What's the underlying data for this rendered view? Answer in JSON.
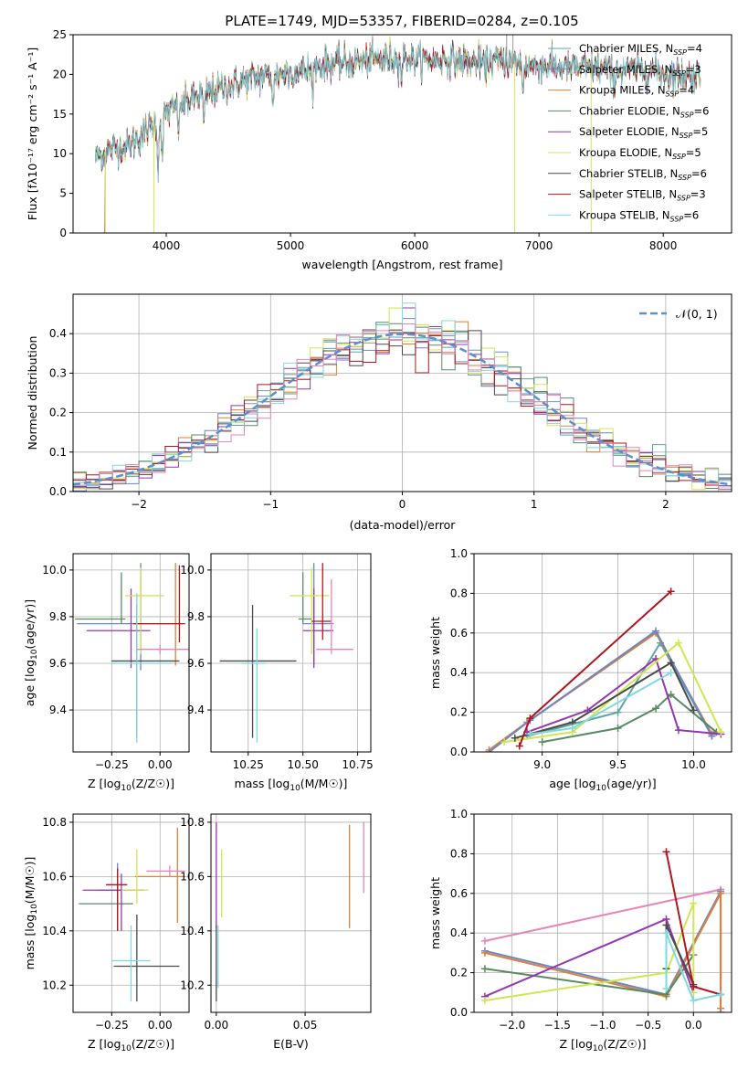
{
  "figure": {
    "title": "PLATE=1749, MJD=53357, FIBERID=0284, z=0.105"
  },
  "colors": {
    "chabrier_miles": "#5fa5a5",
    "salpeter_miles": "#6b86c7",
    "kroupa_miles": "#d9823b",
    "chabrier_elodie": "#5a8a62",
    "salpeter_elodie": "#9437b0",
    "kroupa_elodie": "#d3e650",
    "chabrier_stelib": "#4a4a4a",
    "salpeter_stelib": "#b1151d",
    "kroupa_stelib": "#7fd9de",
    "pink": "#e884b8",
    "gauss": "#5b8fd0"
  },
  "chart_data": [
    {
      "id": "spectrum",
      "type": "line",
      "xlabel": "wavelength [Angstrom, rest frame]",
      "ylabel": "Flux [fλ10⁻¹⁷ erg cm⁻² s⁻¹ A⁻¹]",
      "xlim": [
        3250,
        8550
      ],
      "ylim": [
        0,
        25
      ],
      "xticks": [
        "4000",
        "5000",
        "6000",
        "7000",
        "8000"
      ],
      "yticks": [
        "0",
        "5",
        "10",
        "15",
        "20",
        "25"
      ],
      "legend_position": "right",
      "legend": [
        {
          "base": "Chabrier MILES, N",
          "sub": "SSP",
          "tail": "=4",
          "color_key": "chabrier_miles"
        },
        {
          "base": "Salpeter MILES, N",
          "sub": "SSP",
          "tail": "=3",
          "color_key": "salpeter_miles"
        },
        {
          "base": "Kroupa MILES, N",
          "sub": "SSP",
          "tail": "=4",
          "color_key": "kroupa_miles"
        },
        {
          "base": "Chabrier ELODIE, N",
          "sub": "SSP",
          "tail": "=6",
          "color_key": "chabrier_elodie"
        },
        {
          "base": "Salpeter ELODIE, N",
          "sub": "SSP",
          "tail": "=5",
          "color_key": "salpeter_elodie"
        },
        {
          "base": "Kroupa ELODIE, N",
          "sub": "SSP",
          "tail": "=5",
          "color_key": "kroupa_elodie"
        },
        {
          "base": "Chabrier STELIB, N",
          "sub": "SSP",
          "tail": "=6",
          "color_key": "chabrier_stelib"
        },
        {
          "base": "Salpeter STELIB, N",
          "sub": "SSP",
          "tail": "=3",
          "color_key": "salpeter_stelib"
        },
        {
          "base": "Kroupa STELIB, N",
          "sub": "SSP",
          "tail": "=6",
          "color_key": "kroupa_stelib"
        }
      ],
      "continuum": [
        [
          3430,
          9.5
        ],
        [
          3550,
          10.5
        ],
        [
          3700,
          11.0
        ],
        [
          3850,
          13.0
        ],
        [
          4000,
          15.2
        ],
        [
          4100,
          16.0
        ],
        [
          4300,
          17.5
        ],
        [
          4500,
          18.5
        ],
        [
          4700,
          19.5
        ],
        [
          4900,
          20.0
        ],
        [
          5100,
          20.5
        ],
        [
          5300,
          21.3
        ],
        [
          5500,
          21.5
        ],
        [
          5700,
          22.0
        ],
        [
          5900,
          22.0
        ],
        [
          6100,
          21.8
        ],
        [
          6300,
          21.8
        ],
        [
          6500,
          21.5
        ],
        [
          6700,
          21.7
        ],
        [
          6900,
          21.2
        ],
        [
          7100,
          21.0
        ],
        [
          7300,
          20.8
        ],
        [
          7600,
          20.6
        ],
        [
          7900,
          20.5
        ],
        [
          8100,
          20.0
        ],
        [
          8300,
          19.8
        ]
      ],
      "absorption_features": [
        [
          3934,
          6.0
        ],
        [
          3969,
          5.5
        ],
        [
          4102,
          3.0
        ],
        [
          4304,
          4.0
        ],
        [
          4861,
          3.5
        ],
        [
          5175,
          2.5
        ],
        [
          5893,
          2.5
        ],
        [
          6563,
          1.5
        ],
        [
          6870,
          3.0
        ],
        [
          7600,
          2.5
        ]
      ],
      "spikes": [
        [
          3510,
          0.0
        ],
        [
          3900,
          0.0
        ],
        [
          6805,
          0.0
        ],
        [
          7420,
          0.0
        ],
        [
          6740,
          25.0
        ],
        [
          6790,
          25.0
        ]
      ]
    },
    {
      "id": "residual_histogram",
      "type": "bar",
      "xlabel": "(data-model)/error",
      "ylabel": "Normed distribution",
      "xlim": [
        -2.5,
        2.5
      ],
      "ylim": [
        0,
        0.5
      ],
      "xticks": [
        "−2",
        "−1",
        "0",
        "1",
        "2"
      ],
      "yticks": [
        "0.0",
        "0.1",
        "0.2",
        "0.3",
        "0.4"
      ],
      "legend": "𝒩(0, 1)",
      "gaussian": {
        "mu": 0,
        "sigma": 1
      },
      "bin_width": 0.1
    },
    {
      "id": "age_vs_Z",
      "type": "scatter",
      "xlabel": "Z [log10(Z/Z☉)]",
      "ylabel": "age  [log10(age/yr)]",
      "xlim": [
        -0.45,
        0.15
      ],
      "ylim": [
        9.22,
        10.07
      ],
      "xticks": [
        "−0.25",
        "0.00"
      ],
      "yticks": [
        "9.4",
        "9.6",
        "9.8",
        "10.0"
      ],
      "points": [
        {
          "x": -0.1,
          "y": 9.77,
          "xerr": [
            0.33,
            0.18
          ],
          "yerr": [
            0.2,
            0.26
          ],
          "color_key": "salpeter_miles"
        },
        {
          "x": 0.08,
          "y": 9.77,
          "xerr": [
            0.2,
            0.04
          ],
          "yerr": [
            0.18,
            0.26
          ],
          "color_key": "kroupa_miles"
        },
        {
          "x": -0.2,
          "y": 9.79,
          "xerr": [
            0.24,
            0.02
          ],
          "yerr": [
            0.02,
            0.2
          ],
          "color_key": "chabrier_elodie"
        },
        {
          "x": -0.15,
          "y": 9.74,
          "xerr": [
            0.23,
            0.1
          ],
          "yerr": [
            0.16,
            0.18
          ],
          "color_key": "salpeter_elodie"
        },
        {
          "x": -0.1,
          "y": 9.89,
          "xerr": [
            0.08,
            0.12
          ],
          "yerr": [
            0.25,
            0.12
          ],
          "color_key": "kroupa_elodie"
        },
        {
          "x": -0.12,
          "y": 9.61,
          "xerr": [
            0.13,
            0.22
          ],
          "yerr": [
            0.33,
            0.24
          ],
          "color_key": "chabrier_stelib"
        },
        {
          "x": 0.1,
          "y": 9.77,
          "xerr": [
            0.24,
            0.03
          ],
          "yerr": [
            0.08,
            0.25
          ],
          "color_key": "salpeter_stelib"
        },
        {
          "x": -0.12,
          "y": 9.6,
          "xerr": [
            0.13,
            0.18
          ],
          "yerr": [
            0.34,
            0.3
          ],
          "color_key": "kroupa_stelib"
        },
        {
          "x": 0.0,
          "y": 9.66,
          "xerr": [
            0.12,
            0.15
          ],
          "yerr": [
            0.02,
            0.02
          ],
          "color_key": "pink"
        }
      ]
    },
    {
      "id": "age_vs_mass",
      "type": "scatter",
      "xlabel": "mass [log10(M/M☉)]",
      "ylabel": "",
      "xlim": [
        10.08,
        10.81
      ],
      "ylim": [
        9.22,
        10.07
      ],
      "xticks": [
        "10.25",
        "10.50",
        "10.75"
      ],
      "yticks": [
        "9.4",
        "9.6",
        "9.8",
        "10.0"
      ],
      "points": [
        {
          "x": 10.55,
          "y": 9.77,
          "xerr": [
            0.05,
            0.09
          ],
          "yerr": [
            0.18,
            0.26
          ],
          "color_key": "salpeter_miles"
        },
        {
          "x": 10.5,
          "y": 9.79,
          "xerr": [
            0.02,
            0.04
          ],
          "yerr": [
            0.02,
            0.2
          ],
          "color_key": "chabrier_elodie"
        },
        {
          "x": 10.55,
          "y": 9.74,
          "xerr": [
            0.05,
            0.09
          ],
          "yerr": [
            0.16,
            0.18
          ],
          "color_key": "salpeter_elodie"
        },
        {
          "x": 10.54,
          "y": 9.89,
          "xerr": [
            0.1,
            0.08
          ],
          "yerr": [
            0.25,
            0.12
          ],
          "color_key": "kroupa_elodie"
        },
        {
          "x": 10.27,
          "y": 9.61,
          "xerr": [
            0.15,
            0.2
          ],
          "yerr": [
            0.33,
            0.24
          ],
          "color_key": "chabrier_stelib"
        },
        {
          "x": 10.59,
          "y": 9.78,
          "xerr": [
            0.05,
            0.04
          ],
          "yerr": [
            0.08,
            0.25
          ],
          "color_key": "salpeter_stelib"
        },
        {
          "x": 10.29,
          "y": 9.6,
          "xerr": [
            0.07,
            0.04
          ],
          "yerr": [
            0.34,
            0.15
          ],
          "color_key": "kroupa_stelib"
        },
        {
          "x": 10.63,
          "y": 9.66,
          "xerr": [
            0.07,
            0.1
          ],
          "yerr": [
            0.02,
            0.3
          ],
          "color_key": "pink"
        }
      ]
    },
    {
      "id": "weight_vs_age",
      "type": "line",
      "xlabel": "age  [log10(age/yr)]",
      "ylabel": "mass weight",
      "xlim": [
        8.55,
        10.25
      ],
      "ylim": [
        0,
        1
      ],
      "xticks": [
        "9.0",
        "9.5",
        "10.0"
      ],
      "yticks": [
        "0.0",
        "0.2",
        "0.4",
        "0.6",
        "0.8",
        "1.0"
      ],
      "series": [
        {
          "color_key": "chabrier_miles",
          "x": [
            8.9,
            9.5,
            9.78,
            10.12
          ],
          "y": [
            0.08,
            0.2,
            0.55,
            0.08
          ]
        },
        {
          "color_key": "kroupa_miles",
          "x": [
            8.65,
            8.9,
            9.75,
            10.12
          ],
          "y": [
            0.01,
            0.15,
            0.6,
            0.09
          ]
        },
        {
          "color_key": "salpeter_miles",
          "x": [
            8.65,
            8.92,
            9.75,
            10.12
          ],
          "y": [
            0.0,
            0.16,
            0.61,
            0.08
          ]
        },
        {
          "color_key": "chabrier_elodie",
          "x": [
            9.0,
            9.5,
            9.75,
            9.85,
            10.15
          ],
          "y": [
            0.05,
            0.12,
            0.22,
            0.29,
            0.1
          ]
        },
        {
          "color_key": "salpeter_elodie",
          "x": [
            8.9,
            9.3,
            9.75,
            9.9,
            10.18
          ],
          "y": [
            0.1,
            0.21,
            0.47,
            0.11,
            0.09
          ]
        },
        {
          "color_key": "kroupa_elodie",
          "x": [
            8.75,
            9.2,
            9.9,
            10.18
          ],
          "y": [
            0.05,
            0.1,
            0.55,
            0.1
          ]
        },
        {
          "color_key": "chabrier_stelib",
          "x": [
            8.82,
            9.2,
            9.85,
            10.0
          ],
          "y": [
            0.07,
            0.15,
            0.45,
            0.21
          ]
        },
        {
          "color_key": "salpeter_stelib",
          "x": [
            8.85,
            8.92,
            9.85
          ],
          "y": [
            0.03,
            0.17,
            0.81
          ]
        },
        {
          "color_key": "kroupa_stelib",
          "x": [
            8.92,
            9.2,
            9.85
          ],
          "y": [
            0.09,
            0.12,
            0.4
          ]
        }
      ]
    },
    {
      "id": "mass_vs_Z",
      "type": "scatter",
      "xlabel": "Z [log10(Z/Z☉)]",
      "ylabel": "mass [log10(M/M☉)]",
      "xlim": [
        -0.45,
        0.15
      ],
      "ylim": [
        10.1,
        10.83
      ],
      "xticks": [
        "−0.25",
        "0.00"
      ],
      "yticks": [
        "10.2",
        "10.4",
        "10.6",
        "10.8"
      ],
      "points": [
        {
          "x": -0.22,
          "y": 10.55,
          "xerr": [
            0.1,
            0.05
          ],
          "yerr": [
            0.15,
            0.1
          ],
          "color_key": "salpeter_miles"
        },
        {
          "x": 0.09,
          "y": 10.6,
          "xerr": [
            0.22,
            0.04
          ],
          "yerr": [
            0.17,
            0.18
          ],
          "color_key": "kroupa_miles"
        },
        {
          "x": -0.22,
          "y": 10.5,
          "xerr": [
            0.2,
            0.08
          ],
          "yerr": [
            0.1,
            0.13
          ],
          "color_key": "chabrier_elodie"
        },
        {
          "x": -0.2,
          "y": 10.55,
          "xerr": [
            0.2,
            0.12
          ],
          "yerr": [
            0.15,
            0.06
          ],
          "color_key": "salpeter_elodie"
        },
        {
          "x": -0.12,
          "y": 10.55,
          "xerr": [
            0.08,
            0.06
          ],
          "yerr": [
            0.05,
            0.15
          ],
          "color_key": "kroupa_elodie"
        },
        {
          "x": -0.12,
          "y": 10.27,
          "xerr": [
            0.12,
            0.22
          ],
          "yerr": [
            0.13,
            0.19
          ],
          "color_key": "chabrier_stelib"
        },
        {
          "x": -0.22,
          "y": 10.57,
          "xerr": [
            0.06,
            0.05
          ],
          "yerr": [
            0.17,
            0.06
          ],
          "color_key": "salpeter_stelib"
        },
        {
          "x": -0.15,
          "y": 10.29,
          "xerr": [
            0.1,
            0.1
          ],
          "yerr": [
            0.15,
            0.13
          ],
          "color_key": "kroupa_stelib"
        },
        {
          "x": 0.05,
          "y": 10.62,
          "xerr": [
            0.12,
            0.08
          ],
          "yerr": [
            0.02,
            0.02
          ],
          "color_key": "pink"
        }
      ]
    },
    {
      "id": "mass_vs_ebv",
      "type": "scatter",
      "xlabel": "E(B-V)",
      "ylabel": "",
      "xlim": [
        -0.003,
        0.087
      ],
      "ylim": [
        10.1,
        10.83
      ],
      "xticks": [
        "0.00",
        "0.05"
      ],
      "yticks": [
        "10.2",
        "10.4",
        "10.6",
        "10.8"
      ],
      "points": [
        {
          "x": 0.0,
          "y": 10.55,
          "yerr": [
            0.14,
            0.25
          ],
          "color_key": "salpeter_elodie"
        },
        {
          "x": 0.003,
          "y": 10.55,
          "yerr": [
            0.1,
            0.15
          ],
          "color_key": "kroupa_elodie"
        },
        {
          "x": 0.0,
          "y": 10.27,
          "yerr": [
            0.13,
            0.15
          ],
          "color_key": "chabrier_stelib"
        },
        {
          "x": 0.001,
          "y": 10.29,
          "yerr": [
            0.1,
            0.13
          ],
          "color_key": "kroupa_stelib"
        },
        {
          "x": 0.075,
          "y": 10.6,
          "yerr": [
            0.19,
            0.19
          ],
          "color_key": "kroupa_miles"
        },
        {
          "x": 0.083,
          "y": 10.67,
          "yerr": [
            0.13,
            0.13
          ],
          "color_key": "pink"
        }
      ]
    },
    {
      "id": "weight_vs_Z",
      "type": "line",
      "xlabel": "Z [log10(Z/Z☉)]",
      "ylabel": "mass weight",
      "xlim": [
        -2.42,
        0.42
      ],
      "ylim": [
        0,
        1
      ],
      "xticks": [
        "−2.0",
        "−1.5",
        "−1.0",
        "−0.5",
        "0.0"
      ],
      "yticks": [
        "0.0",
        "0.2",
        "0.4",
        "0.6",
        "0.8",
        "1.0"
      ],
      "series": [
        {
          "color_key": "pink",
          "x": [
            -2.3,
            0.3
          ],
          "y": [
            0.36,
            0.62
          ]
        },
        {
          "color_key": "salpeter_miles",
          "x": [
            -2.3,
            -0.3,
            0.3,
            0.3
          ],
          "y": [
            0.31,
            0.09,
            0.61,
            0.0
          ]
        },
        {
          "color_key": "kroupa_miles",
          "x": [
            -2.3,
            -0.3,
            0.3,
            0.3
          ],
          "y": [
            0.3,
            0.08,
            0.6,
            0.02
          ]
        },
        {
          "color_key": "chabrier_elodie",
          "x": [
            -2.3,
            -0.3,
            0.0
          ],
          "y": [
            0.22,
            0.09,
            0.29
          ]
        },
        {
          "color_key": "salpeter_elodie",
          "x": [
            -2.3,
            -0.3,
            0.0
          ],
          "y": [
            0.08,
            0.47,
            0.1
          ]
        },
        {
          "color_key": "kroupa_elodie",
          "x": [
            -2.3,
            -0.3,
            0.0,
            0.0
          ],
          "y": [
            0.06,
            0.2,
            0.55,
            0.1
          ]
        },
        {
          "color_key": "chabrier_stelib",
          "x": [
            -0.3,
            -0.3,
            0.0
          ],
          "y": [
            0.22,
            0.44,
            0.14
          ]
        },
        {
          "color_key": "salpeter_stelib",
          "x": [
            -0.3,
            0.0,
            0.3
          ],
          "y": [
            0.81,
            0.13,
            0.09
          ]
        },
        {
          "color_key": "kroupa_stelib",
          "x": [
            -0.3,
            -0.3,
            0.0,
            0.3
          ],
          "y": [
            0.12,
            0.4,
            0.06,
            0.09
          ]
        }
      ]
    }
  ]
}
